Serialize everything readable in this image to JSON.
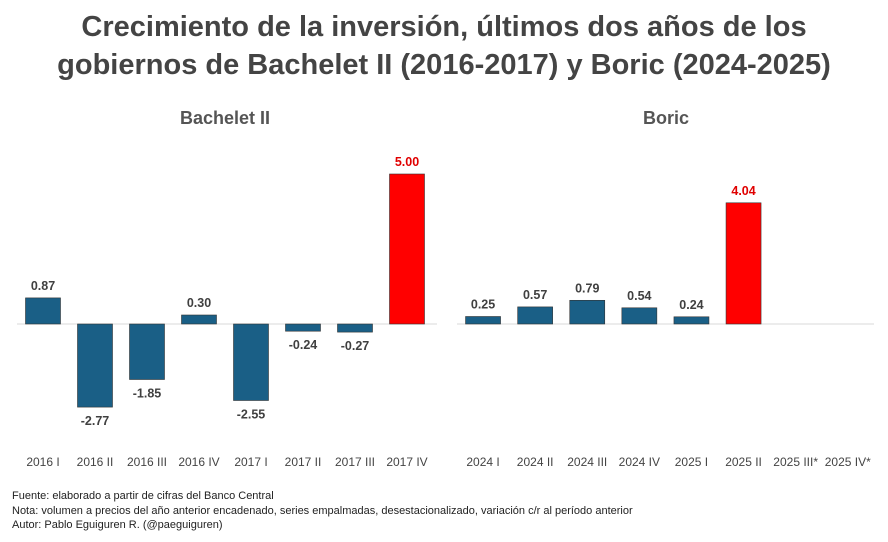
{
  "title_line1": "Crecimiento de la inversión, últimos dos años de los",
  "title_line2": "gobiernos de Bachelet II (2016-2017) y Boric (2024-2025)",
  "notes": {
    "source": "Fuente: elaborado a partir de cifras del Banco Central",
    "note": "Nota: volumen a precios del año anterior encadenado, series empalmadas, desestacionalizado, variación c/r al período anterior",
    "author": "Autor: Pablo Eguiguren R. (@paeguiguren)"
  },
  "colors": {
    "bar": "#1a5f86",
    "highlight": "#ff0000",
    "label": "#404040",
    "highlight_label": "#e00000"
  },
  "chart_data": [
    {
      "type": "bar",
      "title": "Bachelet II",
      "categories": [
        "2016 I",
        "2016 II",
        "2016 III",
        "2016 IV",
        "2017 I",
        "2017 II",
        "2017 III",
        "2017 IV"
      ],
      "values": [
        0.87,
        -2.77,
        -1.85,
        0.3,
        -2.55,
        -0.24,
        -0.27,
        5.0
      ],
      "labels": [
        "0.87",
        "-2.77",
        "-1.85",
        "0.30",
        "-2.55",
        "-0.24",
        "-0.27",
        "5.00"
      ],
      "highlight": [
        false,
        false,
        false,
        false,
        false,
        false,
        false,
        true
      ]
    },
    {
      "type": "bar",
      "title": "Boric",
      "categories": [
        "2024 I",
        "2024 II",
        "2024 III",
        "2024 IV",
        "2025 I",
        "2025 II",
        "2025 III*",
        "2025 IV*"
      ],
      "values": [
        0.25,
        0.57,
        0.79,
        0.54,
        0.24,
        4.04,
        null,
        null
      ],
      "labels": [
        "0.25",
        "0.57",
        "0.79",
        "0.54",
        "0.24",
        "4.04",
        "",
        ""
      ],
      "highlight": [
        false,
        false,
        false,
        false,
        false,
        true,
        false,
        false
      ]
    }
  ]
}
